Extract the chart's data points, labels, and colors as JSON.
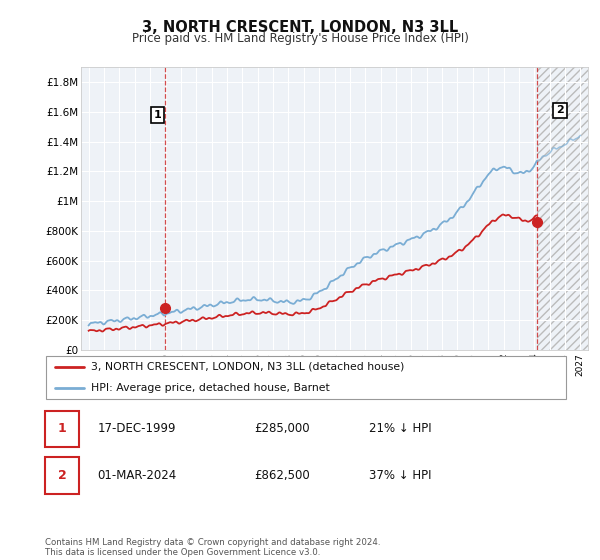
{
  "title": "3, NORTH CRESCENT, LONDON, N3 3LL",
  "subtitle": "Price paid vs. HM Land Registry's House Price Index (HPI)",
  "ylim": [
    0,
    1900000
  ],
  "xlim_start": 1994.5,
  "xlim_end": 2027.5,
  "yticks": [
    0,
    200000,
    400000,
    600000,
    800000,
    1000000,
    1200000,
    1400000,
    1600000,
    1800000
  ],
  "ytick_labels": [
    "£0",
    "£200K",
    "£400K",
    "£600K",
    "£800K",
    "£1M",
    "£1.2M",
    "£1.4M",
    "£1.6M",
    "£1.8M"
  ],
  "xticks": [
    1995,
    1996,
    1997,
    1998,
    1999,
    2000,
    2001,
    2002,
    2003,
    2004,
    2005,
    2006,
    2007,
    2008,
    2009,
    2010,
    2011,
    2012,
    2013,
    2014,
    2015,
    2016,
    2017,
    2018,
    2019,
    2020,
    2021,
    2022,
    2023,
    2024,
    2025,
    2026,
    2027
  ],
  "hpi_color": "#7aadd4",
  "price_color": "#cc2222",
  "bg_color": "#eef2f7",
  "grid_color": "#ffffff",
  "purchase1_x": 1999.96,
  "purchase1_y": 285000,
  "purchase2_x": 2024.17,
  "purchase2_y": 862500,
  "legend_line1": "3, NORTH CRESCENT, LONDON, N3 3LL (detached house)",
  "legend_line2": "HPI: Average price, detached house, Barnet",
  "table_row1_num": "1",
  "table_row1_date": "17-DEC-1999",
  "table_row1_price": "£285,000",
  "table_row1_hpi": "21% ↓ HPI",
  "table_row2_num": "2",
  "table_row2_date": "01-MAR-2024",
  "table_row2_price": "£862,500",
  "table_row2_hpi": "37% ↓ HPI",
  "footnote": "Contains HM Land Registry data © Crown copyright and database right 2024.\nThis data is licensed under the Open Government Licence v3.0.",
  "future_hatch_start": 2024.17
}
